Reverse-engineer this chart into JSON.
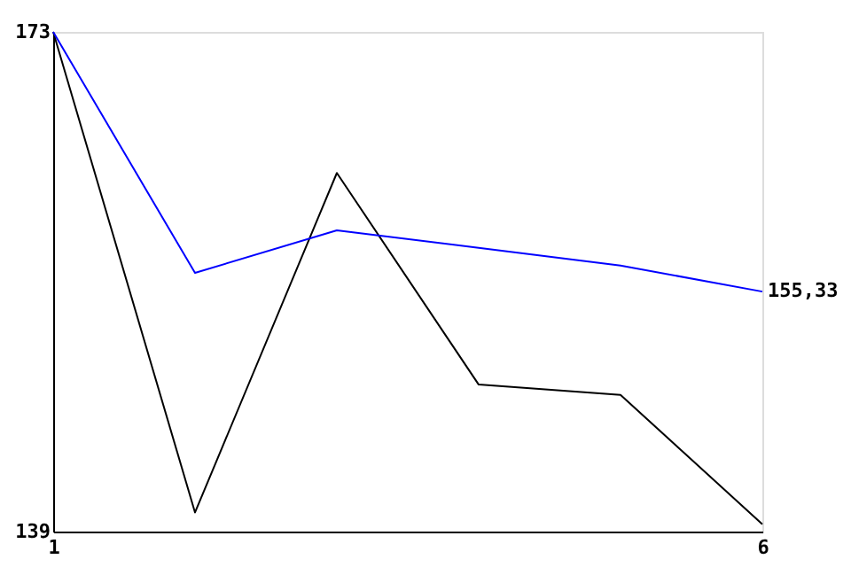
{
  "chart_data": {
    "type": "line",
    "x": [
      1,
      2,
      3,
      4,
      5,
      6
    ],
    "series": [
      {
        "color": "#000000",
        "values": [
          173,
          140.3,
          163.4,
          149.0,
          148.3,
          139.5
        ]
      },
      {
        "color": "#0000ff",
        "values": [
          173,
          156.6,
          159.5,
          158.3,
          157.1,
          155.33
        ]
      }
    ],
    "xlim": [
      1,
      6
    ],
    "ylim": [
      139,
      173
    ],
    "xticks": [
      1,
      6
    ],
    "yticks": [
      139,
      173
    ],
    "annotations": [
      {
        "text": "155,33",
        "x": 6,
        "y": 155.33
      }
    ],
    "marker": "none",
    "line_style": "solid"
  }
}
